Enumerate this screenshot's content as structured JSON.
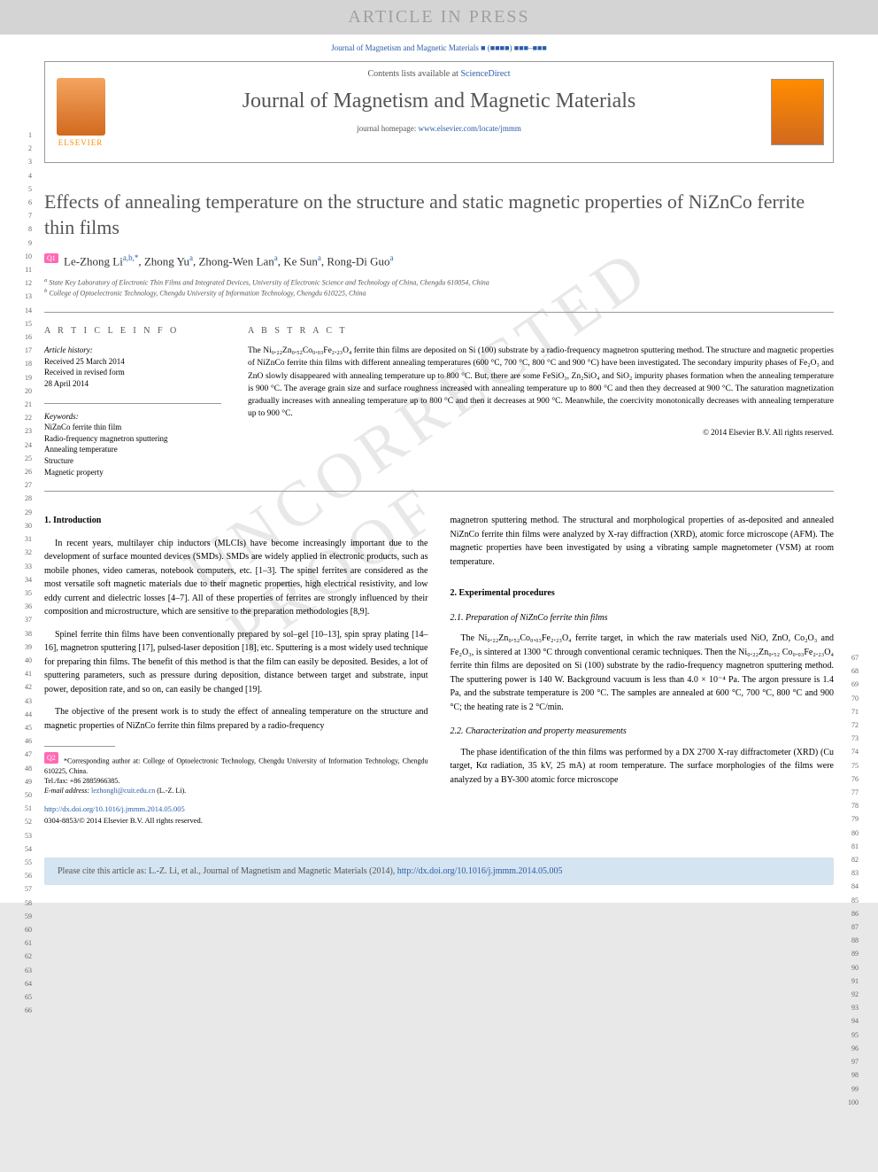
{
  "banner": "ARTICLE IN PRESS",
  "citation_top": "Journal of Magnetism and Magnetic Materials ■ (■■■■) ■■■–■■■",
  "header": {
    "contents_text": "Contents lists available at ",
    "contents_link": "ScienceDirect",
    "journal_name": "Journal of Magnetism and Magnetic Materials",
    "homepage_label": "journal homepage: ",
    "homepage_url": "www.elsevier.com/locate/jmmm",
    "elsevier": "ELSEVIER"
  },
  "title": "Effects of annealing temperature on the structure and static magnetic properties of NiZnCo ferrite thin films",
  "q1": "Q1",
  "q2": "Q2",
  "authors_html": "Le-Zhong Li",
  "authors": {
    "a1": "Le-Zhong Li",
    "a1_sup": "a,b,*",
    "a2": "Zhong Yu",
    "a2_sup": "a",
    "a3": "Zhong-Wen Lan",
    "a3_sup": "a",
    "a4": "Ke Sun",
    "a4_sup": "a",
    "a5": "Rong-Di Guo",
    "a5_sup": "a"
  },
  "affiliations": {
    "a": "State Key Laboratory of Electronic Thin Films and Integrated Devices, University of Electronic Science and Technology of China, Chengdu 610054, China",
    "b": "College of Optoelectronic Technology, Chengdu University of Information Technology, Chengdu 610225, China"
  },
  "article_info": {
    "header": "A R T I C L E   I N F O",
    "history_label": "Article history:",
    "received": "Received 25 March 2014",
    "revised": "Received in revised form",
    "revised_date": "28 April 2014",
    "keywords_label": "Keywords:",
    "keywords": [
      "NiZnCo ferrite thin film",
      "Radio-frequency magnetron sputtering",
      "Annealing temperature",
      "Structure",
      "Magnetic property"
    ]
  },
  "abstract": {
    "header": "A B S T R A C T",
    "text": "The Ni₀.₂₂Zn₀.₅₂Co₀.₀₃Fe₂.₂₃O₄ ferrite thin films are deposited on Si (100) substrate by a radio-frequency magnetron sputtering method. The structure and magnetic properties of NiZnCo ferrite thin films with different annealing temperatures (600 °C, 700 °C, 800 °C and 900 °C) have been investigated. The secondary impurity phases of Fe₂O₃ and ZnO slowly disappeared with annealing temperature up to 800 °C. But, there are some FeSiO₃, Zn₂SiO₄ and SiO₂ impurity phases formation when the annealing temperature is 900 °C. The average grain size and surface roughness increased with annealing temperature up to 800 °C and then they decreased at 900 °C. The saturation magnetization gradually increases with annealing temperature up to 800 °C and then it decreases at 900 °C. Meanwhile, the coercivity monotonically decreases with annealing temperature up to 900 °C.",
    "copyright": "© 2014 Elsevier B.V. All rights reserved."
  },
  "sections": {
    "intro_heading": "1. Introduction",
    "intro_p1": "In recent years, multilayer chip inductors (MLCIs) have become increasingly important due to the development of surface mounted devices (SMDs). SMDs are widely applied in electronic products, such as mobile phones, video cameras, notebook computers, etc. [1–3]. The spinel ferrites are considered as the most versatile soft magnetic materials due to their magnetic properties, high electrical resistivity, and low eddy current and dielectric losses [4–7]. All of these properties of ferrites are strongly influenced by their composition and microstructure, which are sensitive to the preparation methodologies [8,9].",
    "intro_p2": "Spinel ferrite thin films have been conventionally prepared by sol–gel [10–13], spin spray plating [14–16], magnetron sputtering [17], pulsed-laser deposition [18], etc. Sputtering is a most widely used technique for preparing thin films. The benefit of this method is that the film can easily be deposited. Besides, a lot of sputtering parameters, such as pressure during deposition, distance between target and substrate, input power, deposition rate, and so on, can easily be changed [19].",
    "intro_p3": "The objective of the present work is to study the effect of annealing temperature on the structure and magnetic properties of NiZnCo ferrite thin films prepared by a radio-frequency",
    "col2_p1": "magnetron sputtering method. The structural and morphological properties of as-deposited and annealed NiZnCo ferrite thin films were analyzed by X-ray diffraction (XRD), atomic force microscope (AFM). The magnetic properties have been investigated by using a vibrating sample magnetometer (VSM) at room temperature.",
    "exp_heading": "2. Experimental procedures",
    "prep_heading": "2.1. Preparation of NiZnCo ferrite thin films",
    "prep_p1": "The Ni₀.₂₂Zn₀.₅₂Co₀.₀₃Fe₂.₂₃O₄ ferrite target, in which the raw materials used NiO, ZnO, Co₂O₃ and Fe₂O₃, is sintered at 1300 °C through conventional ceramic techniques. Then the Ni₀.₂₂Zn₀.₅₂ Co₀.₀₃Fe₂.₂₃O₄ ferrite thin films are deposited on Si (100) substrate by the radio-frequency magnetron sputtering method. The sputtering power is 140 W. Background vacuum is less than 4.0 × 10⁻⁴ Pa. The argon pressure is 1.4 Pa, and the substrate temperature is 200 °C. The samples are annealed at 600 °C, 700 °C, 800 °C and 900 °C; the heating rate is 2 °C/min.",
    "char_heading": "2.2. Characterization and property measurements",
    "char_p1": "The phase identification of the thin films was performed by a DX 2700 X-ray diffractometer (XRD) (Cu target, Kα radiation, 35 kV, 25 mA) at room temperature. The surface morphologies of the films were analyzed by a BY-300 atomic force microscope"
  },
  "footnotes": {
    "corresponding": "*Corresponding author at: College of Optoelectronic Technology, Chengdu University of Information Technology, Chengdu 610225, China.",
    "tel": "Tel./fax: +86 2885966385.",
    "email_label": "E-mail address: ",
    "email": "lezhongli@cuit.edu.cn",
    "email_name": " (L.-Z. Li)."
  },
  "doi": {
    "url": "http://dx.doi.org/10.1016/j.jmmm.2014.05.005",
    "issn": "0304-8853/© 2014 Elsevier B.V. All rights reserved."
  },
  "cite_box": {
    "text": "Please cite this article as: L.-Z. Li, et al., Journal of Magnetism and Magnetic Materials (2014), ",
    "url": "http://dx.doi.org/10.1016/j.jmmm.2014.05.005"
  },
  "watermark": "UNCORRECTED PROOF",
  "line_numbers": {
    "left_start": 1,
    "left_end": 66,
    "right_start": 67,
    "right_end": 100
  },
  "colors": {
    "link": "#2a5caa",
    "banner_bg": "#d4d4d4",
    "banner_text": "#a0a0a0",
    "q_badge": "#ff69b4",
    "cite_bg": "#d4e4f0",
    "elsevier": "#ff8c00"
  }
}
